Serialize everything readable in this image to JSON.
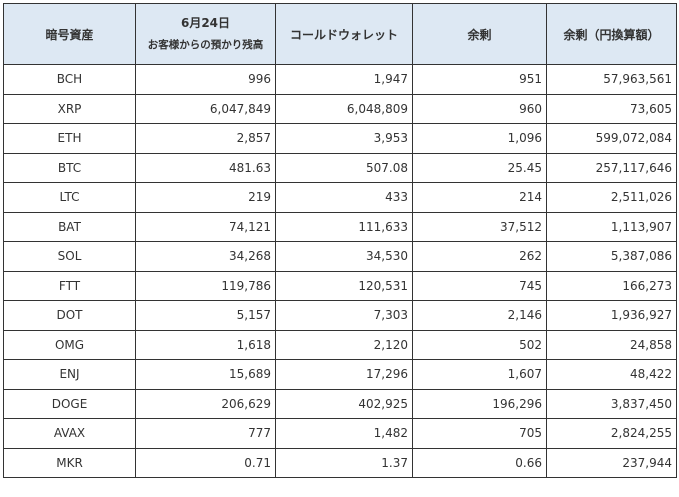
{
  "table": {
    "headers": {
      "asset": "暗号資産",
      "date": "6月24日",
      "customer_balance": "お客様からの預かり残高",
      "cold_wallet": "コールドウォレット",
      "surplus": "余剰",
      "surplus_jpy": "余剰（円換算額）"
    },
    "rows": [
      {
        "asset": "BCH",
        "customer": "996",
        "cold": "1,947",
        "surplus": "951",
        "jpy": "57,963,561"
      },
      {
        "asset": "XRP",
        "customer": "6,047,849",
        "cold": "6,048,809",
        "surplus": "960",
        "jpy": "73,605"
      },
      {
        "asset": "ETH",
        "customer": "2,857",
        "cold": "3,953",
        "surplus": "1,096",
        "jpy": "599,072,084"
      },
      {
        "asset": "BTC",
        "customer": "481.63",
        "cold": "507.08",
        "surplus": "25.45",
        "jpy": "257,117,646"
      },
      {
        "asset": "LTC",
        "customer": "219",
        "cold": "433",
        "surplus": "214",
        "jpy": "2,511,026"
      },
      {
        "asset": "BAT",
        "customer": "74,121",
        "cold": "111,633",
        "surplus": "37,512",
        "jpy": "1,113,907"
      },
      {
        "asset": "SOL",
        "customer": "34,268",
        "cold": "34,530",
        "surplus": "262",
        "jpy": "5,387,086"
      },
      {
        "asset": "FTT",
        "customer": "119,786",
        "cold": "120,531",
        "surplus": "745",
        "jpy": "166,273"
      },
      {
        "asset": "DOT",
        "customer": "5,157",
        "cold": "7,303",
        "surplus": "2,146",
        "jpy": "1,936,927"
      },
      {
        "asset": "OMG",
        "customer": "1,618",
        "cold": "2,120",
        "surplus": "502",
        "jpy": "24,858"
      },
      {
        "asset": "ENJ",
        "customer": "15,689",
        "cold": "17,296",
        "surplus": "1,607",
        "jpy": "48,422"
      },
      {
        "asset": "DOGE",
        "customer": "206,629",
        "cold": "402,925",
        "surplus": "196,296",
        "jpy": "3,837,450"
      },
      {
        "asset": "AVAX",
        "customer": "777",
        "cold": "1,482",
        "surplus": "705",
        "jpy": "2,824,255"
      },
      {
        "asset": "MKR",
        "customer": "0.71",
        "cold": "1.37",
        "surplus": "0.66",
        "jpy": "237,944"
      }
    ]
  },
  "colors": {
    "header_bg": "#dde8f3",
    "border": "#333333",
    "text": "#333333"
  }
}
